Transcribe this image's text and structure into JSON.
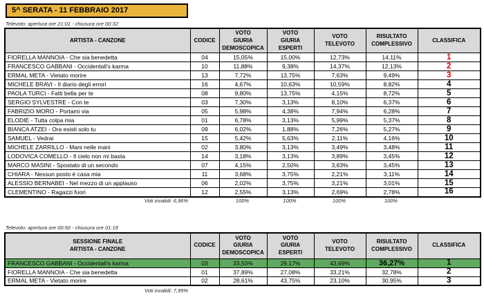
{
  "title": "5^ SERATA - 11 FEBBRAIO 2017",
  "colors": {
    "title_bg": "#E9B43C",
    "header_bg": "#D9D9D9",
    "highlight_green": "#60A960",
    "rank_red": "#E00000"
  },
  "table1": {
    "caption": "Televoto: apertura ore 21:01 - chiusura ore 00:32",
    "headers": [
      "ARTISTA - CANZONE",
      "CODICE",
      "VOTO\nGIURIA\nDEMOSCOPICA",
      "VOTO\nGIURIA\nESPERTI",
      "VOTO\nTELEVOTO",
      "RISULTATO\nCOMPLESSIVO",
      "CLASSIFICA"
    ],
    "rows": [
      {
        "artista": "FIORELLA MANNOIA - Che sia benedetta",
        "codice": "04",
        "demoscopica": "15,05%",
        "esperti": "15,00%",
        "televoto": "12,73%",
        "complessivo": "14,11%",
        "classifica": "1",
        "red": true
      },
      {
        "artista": "FRANCESCO GABBANI - Occidentali's karma",
        "codice": "10",
        "demoscopica": "11,88%",
        "esperti": "9,38%",
        "televoto": "14,37%",
        "complessivo": "12,13%",
        "classifica": "2",
        "red": true
      },
      {
        "artista": "ERMAL META - Vietato morire",
        "codice": "13",
        "demoscopica": "7,72%",
        "esperti": "13,75%",
        "televoto": "7,63%",
        "complessivo": "9,49%",
        "classifica": "3",
        "red": true
      },
      {
        "artista": "MICHELE BRAVI - Il diario degli errori",
        "codice": "16",
        "demoscopica": "4,67%",
        "esperti": "10,63%",
        "televoto": "10,59%",
        "complessivo": "8,82%",
        "classifica": "4"
      },
      {
        "artista": "PAOLA TURCI - Fatti bella per te",
        "codice": "08",
        "demoscopica": "9,80%",
        "esperti": "13,75%",
        "televoto": "4,15%",
        "complessivo": "8,72%",
        "classifica": "5"
      },
      {
        "artista": "SERGIO SYLVESTRE - Con te",
        "codice": "03",
        "demoscopica": "7,30%",
        "esperti": "3,13%",
        "televoto": "8,10%",
        "complessivo": "6,37%",
        "classifica": "6"
      },
      {
        "artista": "FABRIZIO MORO - Portami via",
        "codice": "05",
        "demoscopica": "5,98%",
        "esperti": "4,38%",
        "televoto": "7,94%",
        "complessivo": "6,28%",
        "classifica": "7"
      },
      {
        "artista": "ELODIE - Tutta colpa mia",
        "codice": "01",
        "demoscopica": "6,78%",
        "esperti": "3,13%",
        "televoto": "5,99%",
        "complessivo": "5,37%",
        "classifica": "8"
      },
      {
        "artista": "BIANCA ATZEI - Ora esisti solo tu",
        "codice": "09",
        "demoscopica": "6,02%",
        "esperti": "1,88%",
        "televoto": "7,26%",
        "complessivo": "5,27%",
        "classifica": "9"
      },
      {
        "artista": "SAMUEL - Vedrai",
        "codice": "15",
        "demoscopica": "5,42%",
        "esperti": "5,63%",
        "televoto": "2,11%",
        "complessivo": "4,16%",
        "classifica": "10"
      },
      {
        "artista": "MICHELE ZARRILLO - Mani nelle mani",
        "codice": "02",
        "demoscopica": "3,80%",
        "esperti": "3,13%",
        "televoto": "3,49%",
        "complessivo": "3,48%",
        "classifica": "11"
      },
      {
        "artista": "LODOVICA COMELLO - Il cielo non mi basta",
        "codice": "14",
        "demoscopica": "3,18%",
        "esperti": "3,13%",
        "televoto": "3,89%",
        "complessivo": "3,45%",
        "classifica": "12"
      },
      {
        "artista": "MARCO MASINI - Spostato di un secondo",
        "codice": "07",
        "demoscopica": "4,15%",
        "esperti": "2,50%",
        "televoto": "3,63%",
        "complessivo": "3,45%",
        "classifica": "13"
      },
      {
        "artista": "CHIARA - Nessun posto è casa mia",
        "codice": "11",
        "demoscopica": "3,68%",
        "esperti": "3,75%",
        "televoto": "2,21%",
        "complessivo": "3,11%",
        "classifica": "14"
      },
      {
        "artista": "ALESSIO BERNABEI - Nel mezzo di un applauso",
        "codice": "06",
        "demoscopica": "2,02%",
        "esperti": "3,75%",
        "televoto": "3,21%",
        "complessivo": "3,01%",
        "classifica": "15"
      },
      {
        "artista": "CLEMENTINO - Ragazzi fuori",
        "codice": "12",
        "demoscopica": "2,55%",
        "esperti": "3,13%",
        "televoto": "2,69%",
        "complessivo": "2,78%",
        "classifica": "16"
      }
    ],
    "footer_label": "Voti invalidi: 6,96%",
    "footer_totals": [
      "100%",
      "100%",
      "100%",
      "100%"
    ]
  },
  "table2": {
    "caption": "Televoto: apertura ore 00:50 - chiusura ore 01:18",
    "headers": [
      "SESSIONE FINALE\nARTISTA - CANZONE",
      "CODICE",
      "VOTO\nGIURIA\nDEMOSCOPICA",
      "VOTO\nGIURIA\nESPERTI",
      "VOTO\nTELEVOTO",
      "RISULTATO\nCOMPLESSIVO",
      "CLASSIFICA"
    ],
    "rows": [
      {
        "artista": "FRANCESCO GABBANI - Occidentali's karma",
        "codice": "03",
        "demoscopica": "33,50%",
        "esperti": "29,17%",
        "televoto": "43,69%",
        "complessivo": "36,27%",
        "classifica": "1",
        "highlight": true
      },
      {
        "artista": "FIORELLA MANNOIA - Che sia benedetta",
        "codice": "01",
        "demoscopica": "37,89%",
        "esperti": "27,08%",
        "televoto": "33,21%",
        "complessivo": "32,78%",
        "classifica": "2"
      },
      {
        "artista": "ERMAL META - Vietato morire",
        "codice": "02",
        "demoscopica": "28,61%",
        "esperti": "43,75%",
        "televoto": "23,10%",
        "complessivo": "30,95%",
        "classifica": "3"
      }
    ],
    "footer_label": "Voti invalidi: 7,99%"
  }
}
